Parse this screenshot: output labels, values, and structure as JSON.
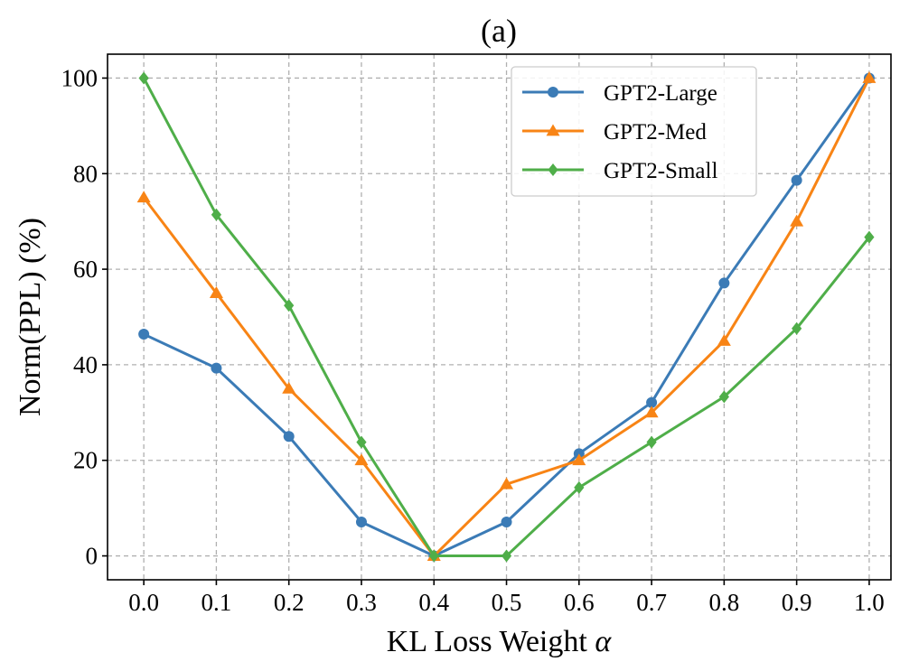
{
  "chart_data": {
    "type": "line",
    "title": "(a)",
    "xlabel": "KL Loss Weight",
    "xlabel_symbol": "α",
    "ylabel": "Norm(PPL) (%)",
    "x": [
      0.0,
      0.1,
      0.2,
      0.3,
      0.4,
      0.5,
      0.6,
      0.7,
      0.8,
      0.9,
      1.0
    ],
    "xticks": [
      "0.0",
      "0.1",
      "0.2",
      "0.3",
      "0.4",
      "0.5",
      "0.6",
      "0.7",
      "0.8",
      "0.9",
      "1.0"
    ],
    "yticks": [
      "0",
      "20",
      "40",
      "60",
      "80",
      "100"
    ],
    "xlim": [
      -0.05,
      1.03
    ],
    "ylim": [
      -5,
      105
    ],
    "grid": true,
    "legend_position": "upper-right",
    "series": [
      {
        "name": "GPT2-Large",
        "color": "#3b7bb6",
        "marker": "circle",
        "values": [
          46.4,
          39.3,
          25.0,
          7.1,
          0.0,
          7.1,
          21.4,
          32.1,
          57.1,
          78.6,
          100.0
        ]
      },
      {
        "name": "GPT2-Med",
        "color": "#f88415",
        "marker": "triangle",
        "values": [
          75.0,
          55.0,
          35.0,
          20.0,
          0.0,
          15.0,
          20.0,
          30.0,
          45.0,
          70.0,
          100.0
        ]
      },
      {
        "name": "GPT2-Small",
        "color": "#4fae49",
        "marker": "diamond",
        "values": [
          100.0,
          71.4,
          52.4,
          23.8,
          0.0,
          0.0,
          14.3,
          23.8,
          33.3,
          47.6,
          66.7
        ]
      }
    ]
  }
}
